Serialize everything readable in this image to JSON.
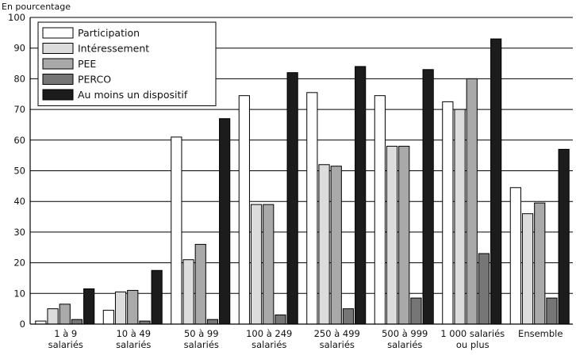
{
  "chart_data": {
    "type": "bar",
    "unit_label": "En pourcentage",
    "ylim": [
      0,
      100
    ],
    "yticks": [
      0,
      10,
      20,
      30,
      40,
      50,
      60,
      70,
      80,
      90,
      100
    ],
    "grid": true,
    "legend_position": "top-left",
    "categories": [
      [
        "1 à 9",
        "salariés"
      ],
      [
        "10 à 49",
        "salariés"
      ],
      [
        "50 à 99",
        "salariés"
      ],
      [
        "100 à 249",
        "salariés"
      ],
      [
        "250 à 499",
        "salariés"
      ],
      [
        "500 à 999",
        "salariés"
      ],
      [
        "1 000 salariés",
        "ou plus"
      ],
      [
        "Ensemble"
      ]
    ],
    "series": [
      {
        "name": "Participation",
        "color": "#ffffff",
        "values": [
          1.0,
          4.5,
          61.0,
          74.5,
          75.5,
          74.5,
          72.5,
          44.5
        ]
      },
      {
        "name": "Intéressement",
        "color": "#dcdcdc",
        "values": [
          5.0,
          10.5,
          21.0,
          39.0,
          52.0,
          58.0,
          70.0,
          36.0
        ]
      },
      {
        "name": "PEE",
        "color": "#a9a9a9",
        "values": [
          6.5,
          11.0,
          26.0,
          39.0,
          51.5,
          58.0,
          80.0,
          39.5
        ]
      },
      {
        "name": "PERCO",
        "color": "#767676",
        "values": [
          1.5,
          1.0,
          1.5,
          3.0,
          5.0,
          8.5,
          23.0,
          8.5
        ]
      },
      {
        "name": "Au moins un dispositif",
        "color": "#1c1c1c",
        "values": [
          11.5,
          17.5,
          67.0,
          82.0,
          84.0,
          83.0,
          93.0,
          57.0
        ]
      }
    ]
  }
}
